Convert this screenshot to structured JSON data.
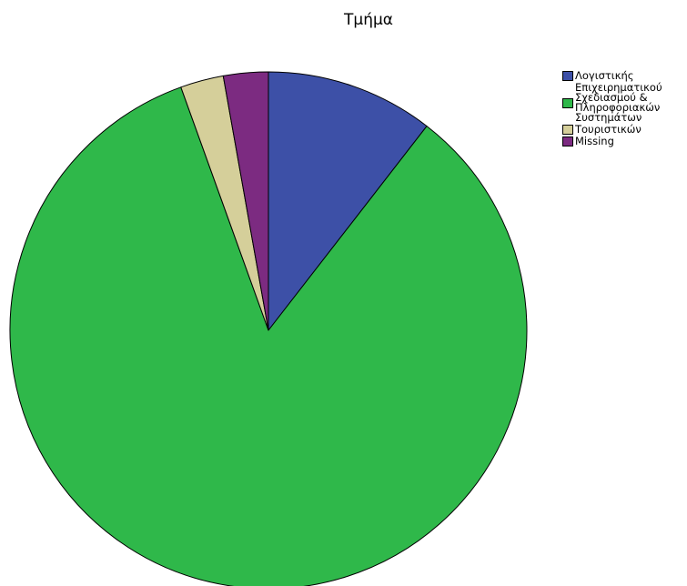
{
  "chart_data": {
    "type": "pie",
    "title": "Τμήμα",
    "legend_position": "right",
    "slices": [
      {
        "label": "Λογιστικής",
        "value": 10.5,
        "color": "#3D50A7"
      },
      {
        "label": "Επιχειρηματικού\nΣχεδιασμού &\nΠληροφοριακών\nΣυστημάτων",
        "value": 84.0,
        "color": "#2FB84A"
      },
      {
        "label": "Τουριστικών",
        "value": 2.7,
        "color": "#D5CF9A"
      },
      {
        "label": "Missing",
        "value": 2.8,
        "color": "#7C2B81"
      }
    ]
  }
}
